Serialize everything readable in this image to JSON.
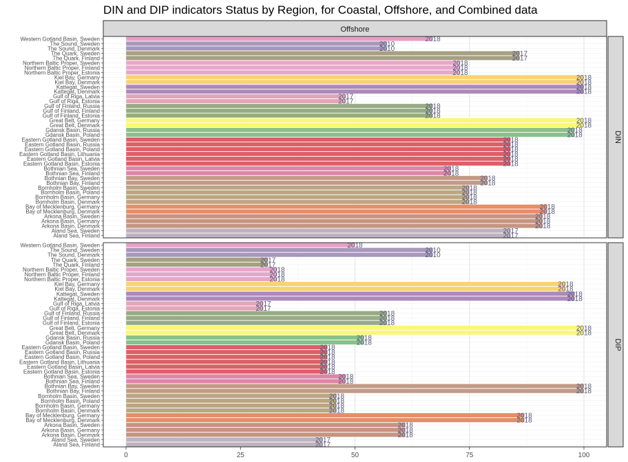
{
  "chart_data": {
    "type": "bar",
    "orientation": "horizontal",
    "title": "DIN and DIP indicators Status by Region, for Coastal, Offshore, and Combined data",
    "facet_column": "Offshore",
    "xlabel": "",
    "ylabel": "",
    "xlim": [
      0,
      100
    ],
    "x_ticks": [
      "0",
      "25",
      "50",
      "75",
      "100"
    ],
    "grid": true,
    "legend": "none",
    "categories": [
      "Western Gotland Basin, Sweden",
      "The Sound, Sweden",
      "The Sound, Denmark",
      "The Quark, Sweden",
      "The Quark, Finland",
      "Northern Baltic Proper, Sweden",
      "Northern Baltic Proper, Finland",
      "Northern Baltic Proper, Estonia",
      "Kiel Bay, Germany",
      "Kiel Bay, Denmark",
      "Kattegat, Sweden",
      "Kattegat, Denmark",
      "Gulf of Riga, Latvia",
      "Gulf of Riga, Estonia",
      "Gulf of Finland, Russia",
      "Gulf of Finland, Finland",
      "Gulf of Finland, Estonia",
      "Great Belt, Germany",
      "Great Belt, Denmark",
      "Gdansk Basin, Russia",
      "Gdansk Basin, Poland",
      "Eastern Gotland Basin, Sweden",
      "Eastern Gotland Basin, Russia",
      "Eastern Gotland Basin, Poland",
      "Eastern Gotland Basin, Lithuania",
      "Eastern Gotland Basin, Latvia",
      "Eastern Gotland Basin, Estonia",
      "Bothnian Sea, Sweden",
      "Bothnian Sea, Finland",
      "Bothnian Bay, Sweden",
      "Bothnian Bay, Finland",
      "Bornholm Basin, Sweden",
      "Bornholm Basin, Poland",
      "Bornholm Basin, Germany",
      "Bornholm Basin, Denmark",
      "Bay of Mecklenburg, Germany",
      "Bay of Mecklenburg, Denmark",
      "Arkona Basin, Sweden",
      "Arkona Basin, Germany",
      "Arkona Basin, Denmark",
      "Aland Sea, Sweden",
      "Aland Sea, Finland"
    ],
    "colors": [
      "#e6a0c4",
      "#a797bb",
      "#a797bb",
      "#a69f82",
      "#a69f82",
      "#e8a6ca",
      "#e8a6ca",
      "#e8a6ca",
      "#f8d372",
      "#f8d372",
      "#ad89ba",
      "#ad89ba",
      "#e2a5b8",
      "#e2a5b8",
      "#96ab84",
      "#96ab84",
      "#96ab84",
      "#fbf776",
      "#fbf776",
      "#87c28b",
      "#87c28b",
      "#dc6068",
      "#dc6068",
      "#dc6068",
      "#dc6068",
      "#dc6068",
      "#dc6068",
      "#dd86a8",
      "#dd86a8",
      "#c39a87",
      "#c39a87",
      "#bba683",
      "#bba683",
      "#bba683",
      "#bba683",
      "#e48f69",
      "#e48f69",
      "#c69481",
      "#c69481",
      "#c69481",
      "#bfb2bf",
      "#bfb2bf"
    ],
    "panels": [
      {
        "name": "DIN",
        "values": [
          67,
          57,
          57,
          86,
          86,
          73,
          73,
          73,
          100,
          100,
          100,
          100,
          48,
          48,
          67,
          67,
          67,
          100,
          100,
          98,
          98,
          84,
          84,
          84,
          84,
          84,
          84,
          71,
          71,
          79,
          79,
          75,
          75,
          75,
          75,
          92,
          92,
          91,
          91,
          91,
          84,
          84
        ],
        "labels": [
          "2018",
          "2010",
          "2010",
          "2017",
          "2017",
          "2018",
          "2018",
          "2018",
          "2018",
          "2018",
          "2018",
          "2018",
          "2017",
          "2017",
          "2018",
          "2018",
          "2018",
          "2018",
          "2018",
          "2018",
          "2018",
          "2018",
          "2018",
          "2018",
          "2018",
          "2018",
          "2018",
          "2018",
          "2018",
          "2018",
          "2018",
          "2018",
          "2018",
          "2018",
          "2018",
          "2018",
          "2018",
          "2018",
          "2018",
          "2018",
          "2017",
          "2017"
        ]
      },
      {
        "name": "DIP",
        "values": [
          50,
          67,
          67,
          31,
          31,
          33,
          33,
          33,
          96,
          96,
          98,
          98,
          30,
          30,
          57,
          57,
          57,
          100,
          100,
          52,
          52,
          44,
          44,
          44,
          44,
          44,
          44,
          48,
          48,
          100,
          100,
          46,
          46,
          46,
          46,
          87,
          87,
          61,
          61,
          61,
          43,
          43
        ],
        "labels": [
          "2018",
          "2010",
          "2010",
          "2017",
          "2017",
          "2018",
          "2018",
          "2018",
          "2018",
          "2018",
          "2018",
          "2018",
          "2017",
          "2017",
          "2018",
          "2018",
          "2018",
          "2018",
          "2018",
          "2018",
          "2018",
          "2018",
          "2018",
          "2018",
          "2018",
          "2018",
          "2018",
          "2018",
          "2018",
          "2018",
          "2018",
          "2018",
          "2018",
          "2018",
          "2018",
          "2018",
          "2018",
          "2018",
          "2018",
          "2018",
          "2017",
          "2017"
        ]
      }
    ]
  }
}
